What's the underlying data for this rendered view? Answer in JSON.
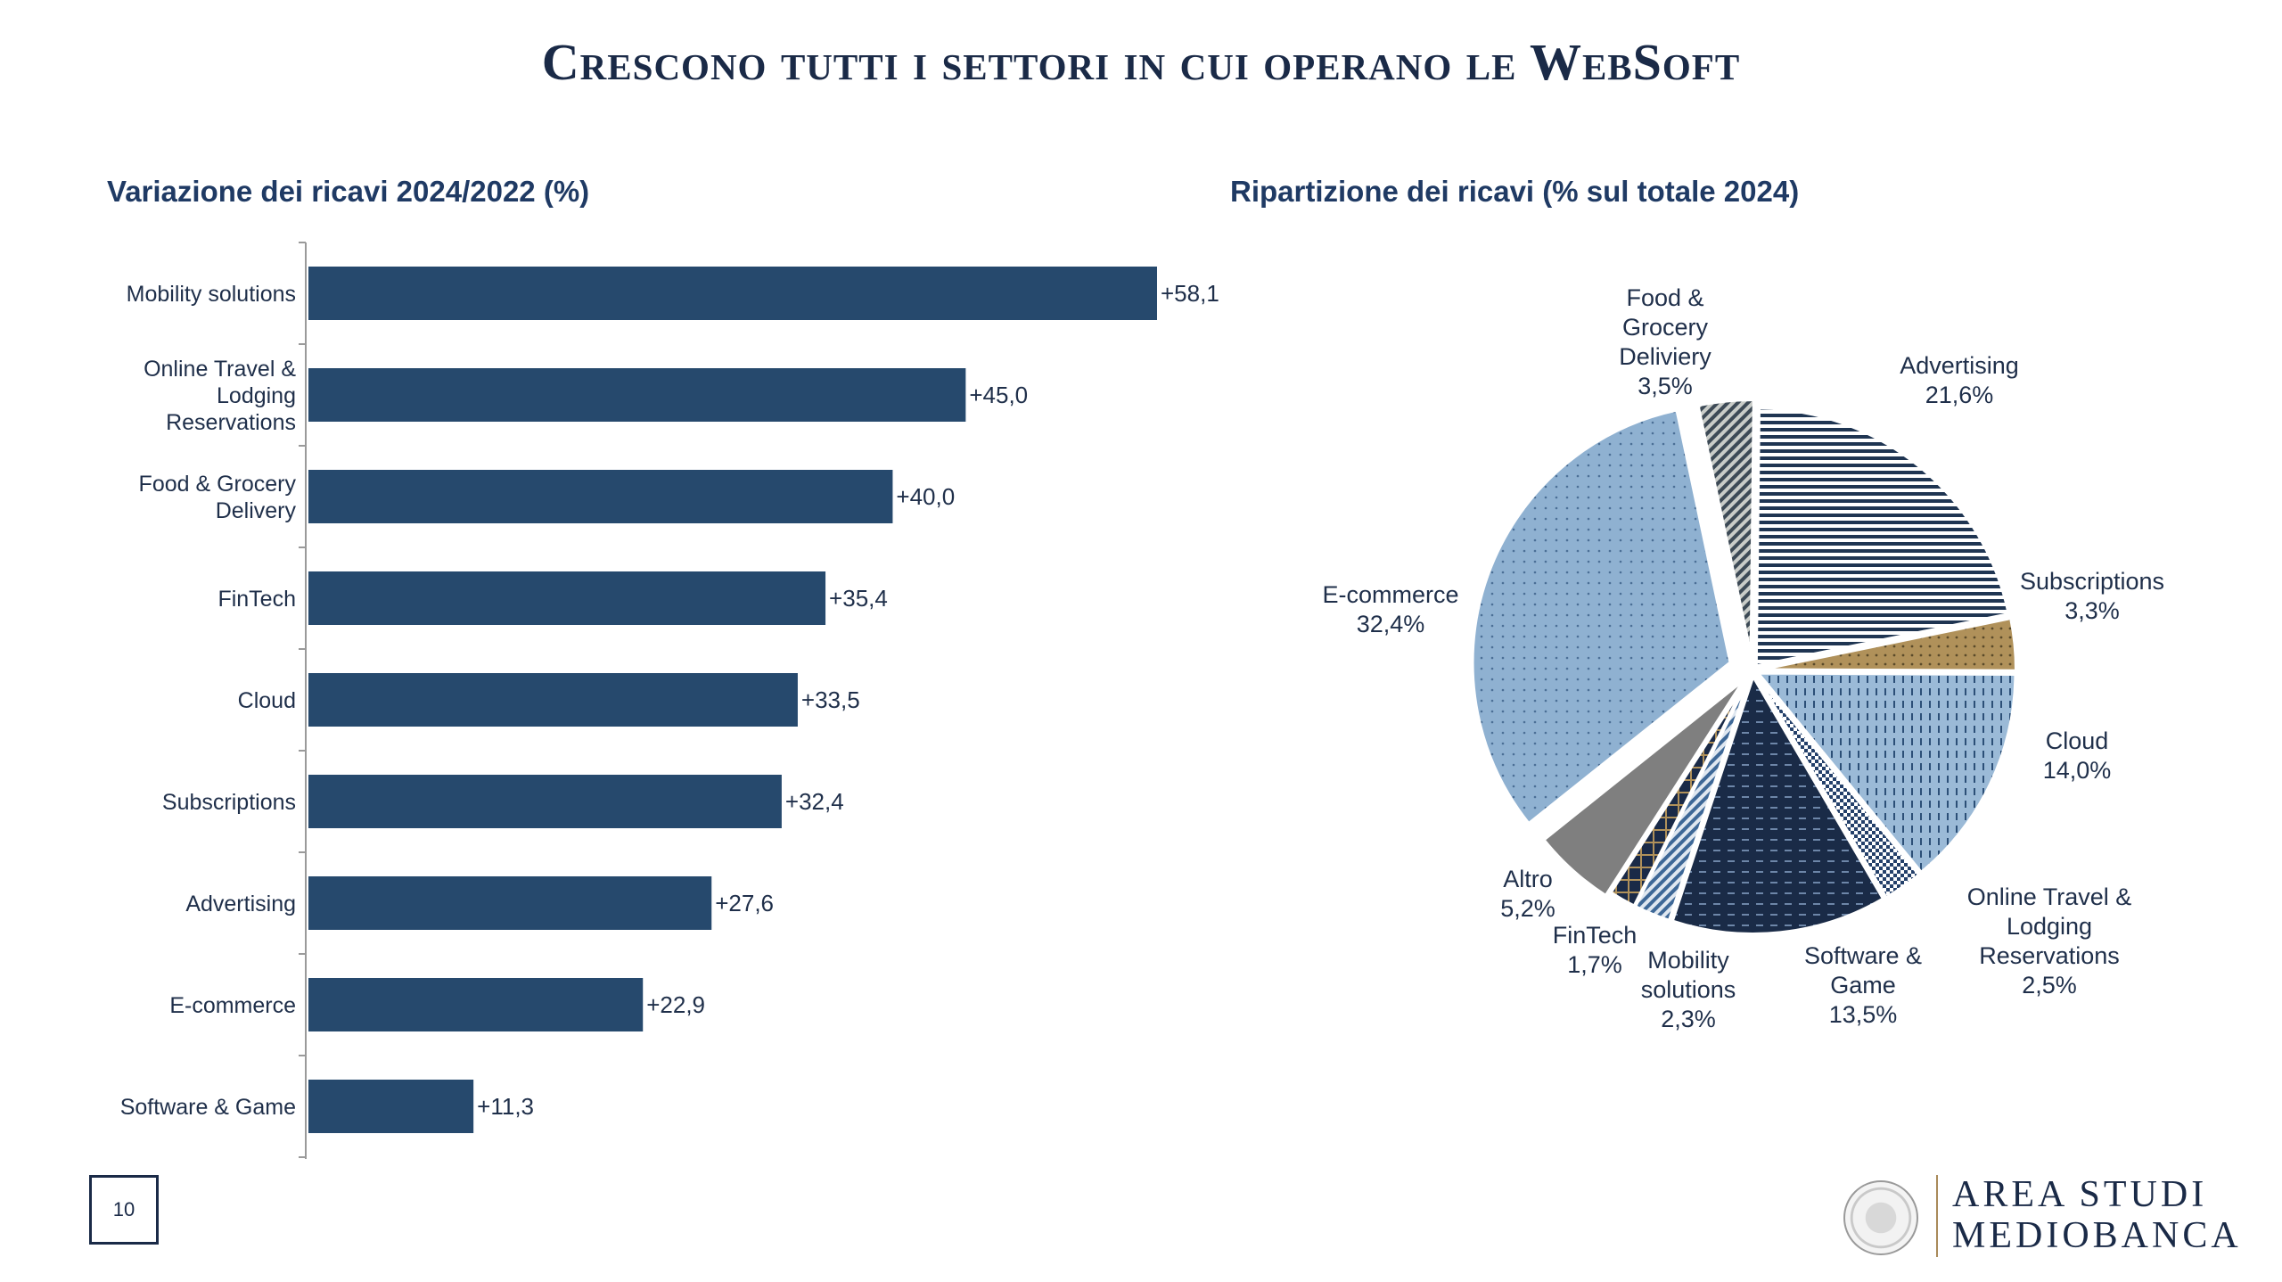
{
  "page": {
    "title": "Crescono tutti i settori in cui operano le WebSoft",
    "page_number": "10",
    "logo_line1": "AREA STUDI",
    "logo_line2": "MEDIOBANCA"
  },
  "colors": {
    "navy": "#26496d",
    "light_blue": "#8fb1d1",
    "gold": "#b0915a",
    "grey": "#7f7f7f",
    "dark": "#1a2a47"
  },
  "chart_data": [
    {
      "type": "bar",
      "orientation": "horizontal",
      "title": "Variazione dei ricavi 2024/2022 (%)",
      "categories": [
        "Mobility solutions",
        "Online Travel & Lodging Reservations",
        "Food & Grocery Delivery",
        "FinTech",
        "Cloud",
        "Subscriptions",
        "Advertising",
        "E-commerce",
        "Software & Game"
      ],
      "category_lines": [
        [
          "Mobility solutions"
        ],
        [
          "Online Travel &",
          "Lodging",
          "Reservations"
        ],
        [
          "Food & Grocery",
          "Delivery"
        ],
        [
          "FinTech"
        ],
        [
          "Cloud"
        ],
        [
          "Subscriptions"
        ],
        [
          "Advertising"
        ],
        [
          "E-commerce"
        ],
        [
          "Software & Game"
        ]
      ],
      "values": [
        58.1,
        45.0,
        40.0,
        35.4,
        33.5,
        32.4,
        27.6,
        22.9,
        11.3
      ],
      "value_labels": [
        "+58,1",
        "+45,0",
        "+40,0",
        "+35,4",
        "+33,5",
        "+32,4",
        "+27,6",
        "+22,9",
        "+11,3"
      ],
      "xlim": [
        0,
        60
      ],
      "grid": false
    },
    {
      "type": "pie",
      "title": "Ripartizione dei ricavi (% sul totale 2024)",
      "slices": [
        {
          "name": "Food & Grocery Deliviery",
          "lines": [
            "Food &",
            "Grocery",
            "Deliviery",
            "3,5%"
          ],
          "value": 3.5,
          "pattern": "diag"
        },
        {
          "name": "Advertising",
          "lines": [
            "Advertising",
            "21,6%"
          ],
          "value": 21.6,
          "pattern": "hlines"
        },
        {
          "name": "Subscriptions",
          "lines": [
            "Subscriptions",
            "3,3%"
          ],
          "value": 3.3,
          "pattern": "gold"
        },
        {
          "name": "Cloud",
          "lines": [
            "Cloud",
            "14,0%"
          ],
          "value": 14.0,
          "pattern": "vdash"
        },
        {
          "name": "Online Travel & Lodging Reservations",
          "lines": [
            "Online Travel &",
            "Lodging",
            "Reservations",
            "2,5%"
          ],
          "value": 2.5,
          "pattern": "checker"
        },
        {
          "name": "Software & Game",
          "lines": [
            "Software &",
            "Game",
            "13,5%"
          ],
          "value": 13.5,
          "pattern": "navydash"
        },
        {
          "name": "Mobility solutions",
          "lines": [
            "Mobility",
            "solutions",
            "2,3%"
          ],
          "value": 2.3,
          "pattern": "diagblue"
        },
        {
          "name": "FinTech",
          "lines": [
            "FinTech",
            "1,7%"
          ],
          "value": 1.7,
          "pattern": "grid"
        },
        {
          "name": "Altro",
          "lines": [
            "Altro",
            "5,2%"
          ],
          "value": 5.2,
          "pattern": "grey"
        },
        {
          "name": "E-commerce",
          "lines": [
            "E-commerce",
            "32,4%"
          ],
          "value": 32.4,
          "pattern": "dots"
        }
      ]
    }
  ]
}
